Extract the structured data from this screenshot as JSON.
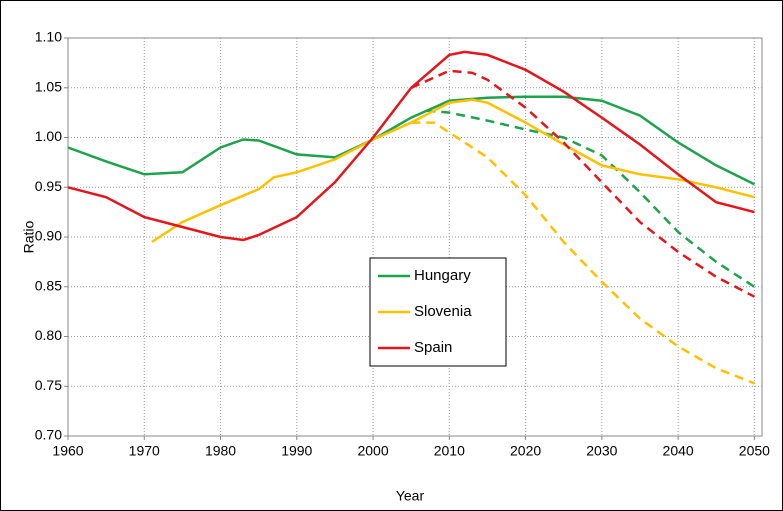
{
  "chart_data": {
    "type": "line",
    "x_label": "Year",
    "y_label": "Ratio",
    "grid": true,
    "legend": "center",
    "xlim": [
      1960,
      2051
    ],
    "ylim": [
      0.7,
      1.1
    ],
    "xticks": [
      1960,
      1970,
      1980,
      1990,
      2000,
      2010,
      2020,
      2030,
      2040,
      2050
    ],
    "yticks": [
      {
        "value": 0.7,
        "label": "0.70"
      },
      {
        "value": 0.75,
        "label": "0.75"
      },
      {
        "value": 0.8,
        "label": "0.80"
      },
      {
        "value": 0.85,
        "label": "0.85"
      },
      {
        "value": 0.9,
        "label": "0.90"
      },
      {
        "value": 0.95,
        "label": "0.95"
      },
      {
        "value": 1.0,
        "label": "1.00"
      },
      {
        "value": 1.05,
        "label": "1.05"
      },
      {
        "value": 1.1,
        "label": "1.10"
      }
    ],
    "series": [
      {
        "name": "Hungary",
        "color": "#1ca34c",
        "x": [
          1960,
          1965,
          1970,
          1975,
          1980,
          1983,
          1985,
          1990,
          1995,
          2000,
          2005,
          2010,
          2015,
          2020,
          2025,
          2030,
          2035,
          2040,
          2045,
          2050
        ],
        "values": [
          0.99,
          0.976,
          0.963,
          0.965,
          0.99,
          0.998,
          0.997,
          0.983,
          0.98,
          0.998,
          1.02,
          1.037,
          1.04,
          1.041,
          1.041,
          1.037,
          1.022,
          0.995,
          0.972,
          0.953
        ],
        "projection": {
          "x": [
            2007,
            2010,
            2015,
            2020,
            2025,
            2030,
            2035,
            2040,
            2045,
            2050
          ],
          "values": [
            1.027,
            1.025,
            1.017,
            1.008,
            1.0,
            0.982,
            0.945,
            0.905,
            0.875,
            0.85
          ]
        }
      },
      {
        "name": "Slovenia",
        "color": "#ffc000",
        "x": [
          1971,
          1975,
          1980,
          1985,
          1987,
          1990,
          1995,
          2000,
          2005,
          2010,
          2013,
          2015,
          2020,
          2025,
          2030,
          2035,
          2040,
          2045,
          2050
        ],
        "values": [
          0.895,
          0.915,
          0.932,
          0.948,
          0.96,
          0.965,
          0.978,
          0.998,
          1.015,
          1.035,
          1.038,
          1.035,
          1.015,
          0.993,
          0.972,
          0.963,
          0.958,
          0.95,
          0.94
        ],
        "projection": {
          "x": [
            2005,
            2008,
            2010,
            2015,
            2020,
            2025,
            2030,
            2035,
            2040,
            2045,
            2050
          ],
          "values": [
            1.015,
            1.015,
            1.005,
            0.98,
            0.942,
            0.895,
            0.855,
            0.818,
            0.79,
            0.768,
            0.753
          ]
        }
      },
      {
        "name": "Spain",
        "color": "#e3161c",
        "x": [
          1960,
          1965,
          1970,
          1975,
          1980,
          1983,
          1985,
          1990,
          1995,
          2000,
          2005,
          2010,
          2012,
          2015,
          2020,
          2025,
          2030,
          2035,
          2040,
          2045,
          2050
        ],
        "values": [
          0.95,
          0.94,
          0.92,
          0.91,
          0.9,
          0.897,
          0.902,
          0.92,
          0.955,
          1.0,
          1.05,
          1.083,
          1.086,
          1.083,
          1.068,
          1.046,
          1.02,
          0.993,
          0.963,
          0.935,
          0.925
        ],
        "projection": {
          "x": [
            2005,
            2010,
            2013,
            2015,
            2020,
            2025,
            2030,
            2035,
            2040,
            2045,
            2050
          ],
          "values": [
            1.05,
            1.067,
            1.065,
            1.058,
            1.03,
            0.995,
            0.955,
            0.915,
            0.885,
            0.86,
            0.84
          ]
        }
      }
    ]
  }
}
